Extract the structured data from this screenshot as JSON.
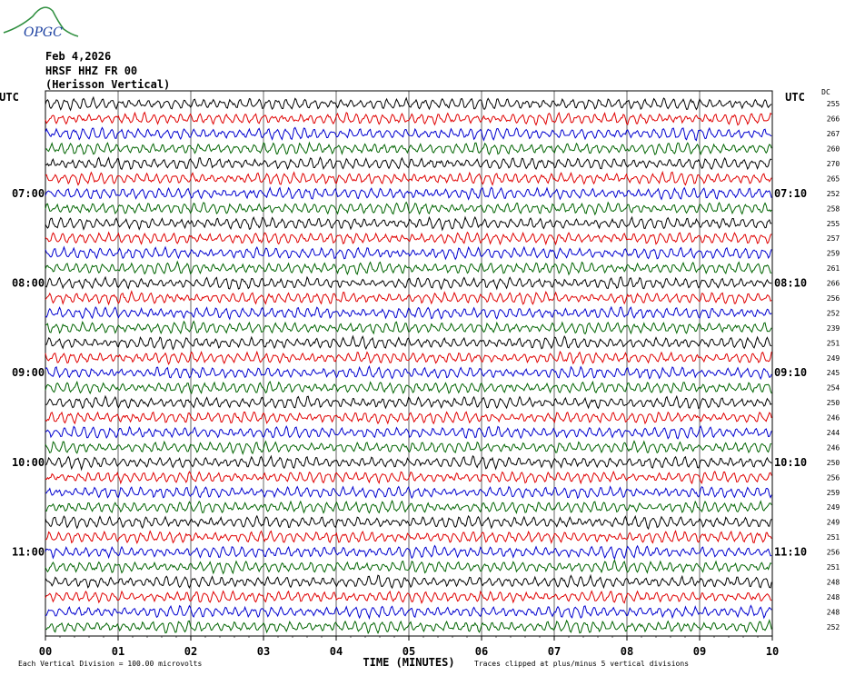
{
  "header": {
    "logo_text": "OPGC",
    "date": "Feb 4,2026",
    "station_line": "HRSF HHZ FR 00",
    "station_name": "(Herisson Vertical)"
  },
  "colors": {
    "trace_cycle": [
      "#000000",
      "#e00000",
      "#0000d0",
      "#006400"
    ],
    "grid": "#000000",
    "logo": "#2f8f3f",
    "logo_text": "#1a3fa0"
  },
  "chart_data": {
    "type": "line",
    "title": "HRSF HHZ FR 00 (Herisson Vertical)",
    "xlabel": "TIME (MINUTES)",
    "ylabel": "",
    "x_ticks": [
      "00",
      "01",
      "02",
      "03",
      "04",
      "05",
      "06",
      "07",
      "08",
      "09",
      "10"
    ],
    "xlim": [
      0,
      10
    ],
    "left_axis_label": "UTC",
    "right_axis_label": "UTC",
    "dc_label": "DC",
    "left_hour_labels": [
      {
        "row": 6,
        "text": "07:00"
      },
      {
        "row": 12,
        "text": "08:00"
      },
      {
        "row": 18,
        "text": "09:00"
      },
      {
        "row": 24,
        "text": "10:00"
      },
      {
        "row": 30,
        "text": "11:00"
      }
    ],
    "right_hour_labels": [
      {
        "row": 6,
        "text": "07:10"
      },
      {
        "row": 12,
        "text": "08:10"
      },
      {
        "row": 18,
        "text": "09:10"
      },
      {
        "row": 24,
        "text": "10:10"
      },
      {
        "row": 30,
        "text": "11:10"
      }
    ],
    "dc_offsets": [
      255,
      266,
      267,
      260,
      270,
      265,
      252,
      258,
      255,
      257,
      259,
      261,
      266,
      256,
      252,
      239,
      251,
      249,
      245,
      254,
      250,
      246,
      244,
      246,
      250,
      256,
      259,
      249,
      249,
      251,
      256,
      251,
      248,
      248,
      248,
      252
    ],
    "trace_count": 36,
    "footer_left": "Each Vertical Division =  100.00 microvolts",
    "footer_right": "Traces clipped at plus/minus 5 vertical divisions",
    "grid": true
  }
}
